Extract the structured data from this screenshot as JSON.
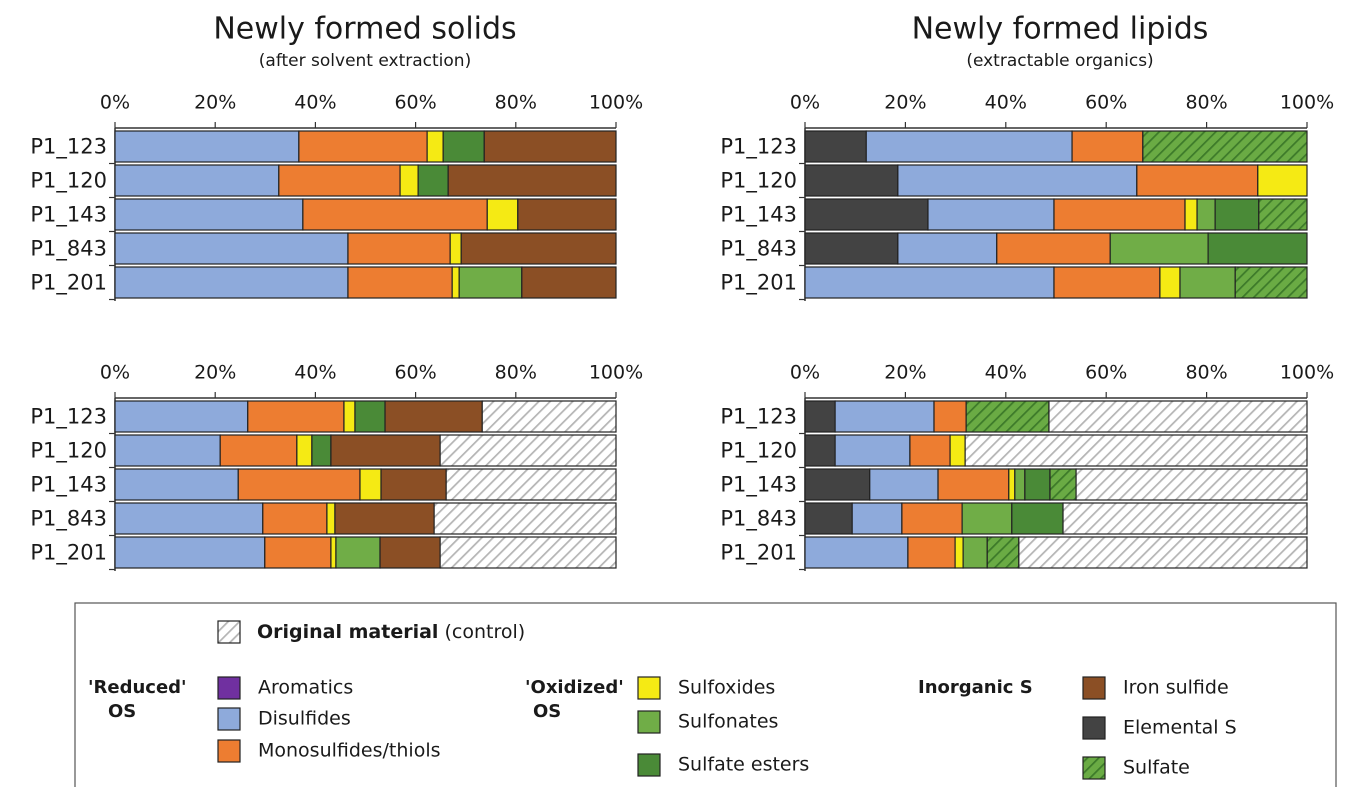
{
  "chart_data": [
    {
      "type": "bar",
      "orientation": "horizontal",
      "stacked": true,
      "title": "Newly formed solids",
      "subtitle": "(after solvent extraction)",
      "categories": [
        "P1_123",
        "P1_120",
        "P1_143",
        "P1_843",
        "P1_201"
      ],
      "xlim": [
        0,
        100
      ],
      "xticks": [
        {
          "value": 0,
          "label": "0%"
        },
        {
          "value": 20,
          "label": "20%"
        },
        {
          "value": 40,
          "label": "40%"
        },
        {
          "value": 60,
          "label": "60%"
        },
        {
          "value": 80,
          "label": "80%"
        },
        {
          "value": 100,
          "label": "100%"
        }
      ],
      "series": [
        {
          "name": "Elemental S",
          "color": "#434343",
          "values": [
            0,
            0,
            0,
            0,
            0
          ]
        },
        {
          "name": "Aromatics",
          "color": "#7030a0",
          "values": [
            0,
            0,
            0,
            0,
            0
          ]
        },
        {
          "name": "Disulfides",
          "color": "#8eaadb",
          "values": [
            36.7,
            32.7,
            37.5,
            46.5,
            46.5
          ]
        },
        {
          "name": "Monosulfides/thiols",
          "color": "#ed7d31",
          "values": [
            25.6,
            24.2,
            36.8,
            20.4,
            20.8
          ]
        },
        {
          "name": "Sulfoxides",
          "color": "#f5ea14",
          "values": [
            3.2,
            3.6,
            6.1,
            2.2,
            1.4
          ]
        },
        {
          "name": "Sulfonates",
          "color": "#70ad47",
          "values": [
            0,
            0,
            0,
            0,
            12.5
          ]
        },
        {
          "name": "Sulfate esters",
          "color": "#4a8a37",
          "values": [
            8.2,
            6.0,
            0,
            0,
            0
          ]
        },
        {
          "name": "Iron sulfide",
          "color": "#8b4f25",
          "values": [
            26.3,
            33.5,
            19.6,
            30.9,
            18.8
          ]
        },
        {
          "name": "Sulfate",
          "color": "#6aab44",
          "hatch": true,
          "hatch_color": "#3d7a2a",
          "values": [
            0,
            0,
            0,
            0,
            0
          ]
        },
        {
          "name": "Original material",
          "color": "#ffffff",
          "hatch": true,
          "hatch_color": "#b5b5b5",
          "values": [
            0,
            0,
            0,
            0,
            0
          ]
        }
      ]
    },
    {
      "type": "bar",
      "orientation": "horizontal",
      "stacked": true,
      "title": "Newly formed lipids",
      "subtitle": "(extractable organics)",
      "categories": [
        "P1_123",
        "P1_120",
        "P1_143",
        "P1_843",
        "P1_201"
      ],
      "xlim": [
        0,
        100
      ],
      "xticks": [
        {
          "value": 0,
          "label": "0%"
        },
        {
          "value": 20,
          "label": "20%"
        },
        {
          "value": 40,
          "label": "40%"
        },
        {
          "value": 60,
          "label": "60%"
        },
        {
          "value": 80,
          "label": "80%"
        },
        {
          "value": 100,
          "label": "100%"
        }
      ],
      "series": [
        {
          "values": [
            12.2,
            18.5,
            24.5,
            18.5,
            0
          ]
        },
        {
          "values": [
            0,
            0,
            0,
            0,
            0
          ]
        },
        {
          "values": [
            41.0,
            47.6,
            25.1,
            19.7,
            49.6
          ]
        },
        {
          "values": [
            14.1,
            24.1,
            26.1,
            22.6,
            21.1
          ]
        },
        {
          "values": [
            0,
            9.8,
            2.4,
            0,
            4.0
          ]
        },
        {
          "values": [
            0,
            0,
            3.6,
            19.5,
            11.0
          ]
        },
        {
          "values": [
            0,
            0,
            8.7,
            19.7,
            0
          ]
        },
        {
          "values": [
            0,
            0,
            0,
            0,
            0
          ]
        },
        {
          "values": [
            32.7,
            0,
            9.6,
            0,
            14.3
          ]
        },
        {
          "values": [
            0,
            0,
            0,
            0,
            0
          ]
        }
      ]
    },
    {
      "type": "bar",
      "orientation": "horizontal",
      "stacked": true,
      "categories": [
        "P1_123",
        "P1_120",
        "P1_143",
        "P1_843",
        "P1_201"
      ],
      "xlim": [
        0,
        100
      ],
      "xticks": [
        {
          "value": 0,
          "label": "0%"
        },
        {
          "value": 20,
          "label": "20%"
        },
        {
          "value": 40,
          "label": "40%"
        },
        {
          "value": 60,
          "label": "60%"
        },
        {
          "value": 80,
          "label": "80%"
        },
        {
          "value": 100,
          "label": "100%"
        }
      ],
      "series": [
        {
          "values": [
            0,
            0,
            0,
            0,
            0
          ]
        },
        {
          "values": [
            0,
            0,
            0,
            0,
            0
          ]
        },
        {
          "values": [
            26.5,
            21.0,
            24.6,
            29.5,
            29.9
          ]
        },
        {
          "values": [
            19.2,
            15.3,
            24.3,
            12.8,
            13.2
          ]
        },
        {
          "values": [
            2.2,
            3.0,
            4.2,
            1.6,
            1.0
          ]
        },
        {
          "values": [
            0,
            0,
            0,
            0,
            8.8
          ]
        },
        {
          "values": [
            6.0,
            3.8,
            0,
            0,
            0
          ]
        },
        {
          "values": [
            19.4,
            21.8,
            13.0,
            19.8,
            12.0
          ]
        },
        {
          "values": [
            0,
            0,
            0,
            0,
            0
          ]
        },
        {
          "values": [
            26.7,
            35.1,
            33.9,
            36.3,
            35.1
          ]
        }
      ]
    },
    {
      "type": "bar",
      "orientation": "horizontal",
      "stacked": true,
      "categories": [
        "P1_123",
        "P1_120",
        "P1_143",
        "P1_843",
        "P1_201"
      ],
      "xlim": [
        0,
        100
      ],
      "xticks": [
        {
          "value": 0,
          "label": "0%"
        },
        {
          "value": 20,
          "label": "20%"
        },
        {
          "value": 40,
          "label": "40%"
        },
        {
          "value": 60,
          "label": "60%"
        },
        {
          "value": 80,
          "label": "80%"
        },
        {
          "value": 100,
          "label": "100%"
        }
      ],
      "series": [
        {
          "values": [
            6.0,
            6.0,
            12.9,
            9.4,
            0
          ]
        },
        {
          "values": [
            0,
            0,
            0,
            0,
            0
          ]
        },
        {
          "values": [
            19.7,
            14.9,
            13.6,
            9.9,
            20.5
          ]
        },
        {
          "values": [
            6.4,
            8.0,
            14.1,
            12.0,
            9.4
          ]
        },
        {
          "values": [
            0,
            3.0,
            1.2,
            0,
            1.6
          ]
        },
        {
          "values": [
            0,
            0,
            2.0,
            9.9,
            4.8
          ]
        },
        {
          "values": [
            0,
            0,
            5.0,
            10.2,
            0
          ]
        },
        {
          "values": [
            0,
            0,
            0,
            0,
            0
          ]
        },
        {
          "values": [
            16.5,
            0,
            5.2,
            0,
            6.3
          ]
        },
        {
          "values": [
            51.4,
            68.1,
            46.0,
            48.6,
            57.4
          ]
        }
      ]
    }
  ],
  "legend": {
    "groups": [
      [
        "'Reduced'",
        "OS"
      ],
      [
        "'Oxidized'",
        "OS"
      ],
      [
        "Inorganic S"
      ]
    ],
    "control_note": "(control)"
  }
}
